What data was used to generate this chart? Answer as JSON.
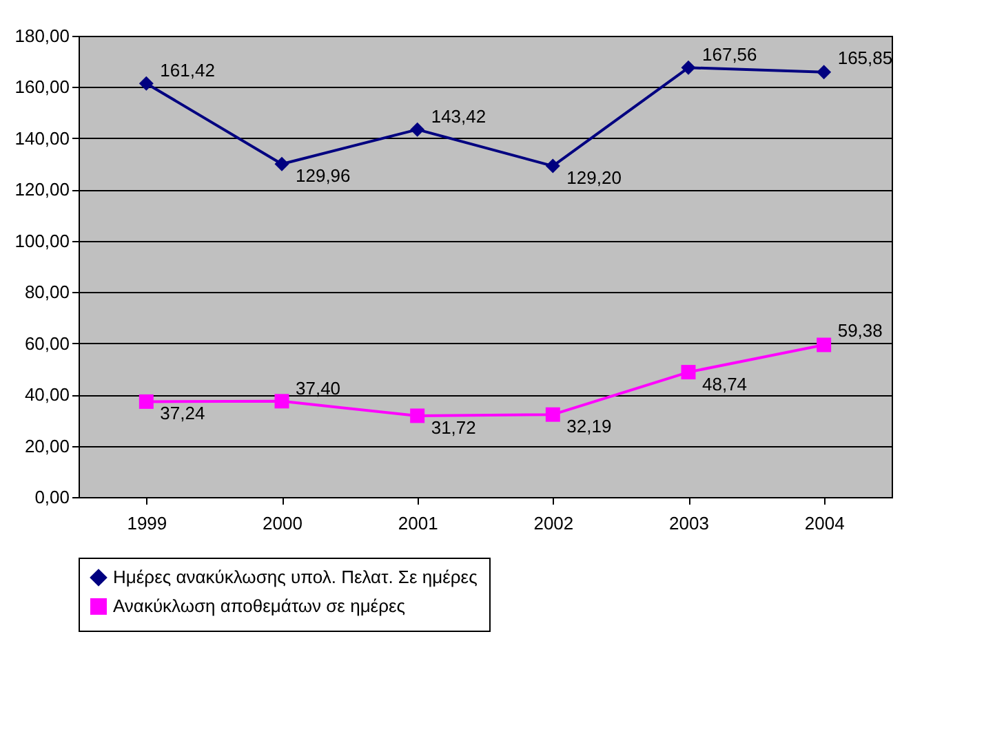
{
  "chart_data": {
    "type": "line",
    "categories": [
      "1999",
      "2000",
      "2001",
      "2002",
      "2003",
      "2004"
    ],
    "series": [
      {
        "name": "Ημέρες ανακύκλωσης υπολ. Πελατ. Σε ημέρες",
        "color": "#000080",
        "marker": "diamond",
        "values": [
          161.42,
          129.96,
          143.42,
          129.2,
          167.56,
          165.85
        ],
        "value_labels": [
          "161,42",
          "129,96",
          "143,42",
          "129,20",
          "167,56",
          "165,85"
        ]
      },
      {
        "name": "Ανακύκλωση αποθεμάτων σε ημέρες",
        "color": "#ff00ff",
        "marker": "square",
        "values": [
          37.24,
          37.4,
          31.72,
          32.19,
          48.74,
          59.38
        ],
        "value_labels": [
          "37,24",
          "37,40",
          "31,72",
          "32,19",
          "48,74",
          "59,38"
        ]
      }
    ],
    "ylim": [
      0,
      180
    ],
    "yticks": [
      {
        "value": 0,
        "label": "0,00"
      },
      {
        "value": 20,
        "label": "20,00"
      },
      {
        "value": 40,
        "label": "40,00"
      },
      {
        "value": 60,
        "label": "60,00"
      },
      {
        "value": 80,
        "label": "80,00"
      },
      {
        "value": 100,
        "label": "100,00"
      },
      {
        "value": 120,
        "label": "120,00"
      },
      {
        "value": 140,
        "label": "140,00"
      },
      {
        "value": 160,
        "label": "160,00"
      },
      {
        "value": 180,
        "label": "180,00"
      }
    ],
    "grid": "y",
    "legend": "bottom",
    "line_style": "solid"
  }
}
